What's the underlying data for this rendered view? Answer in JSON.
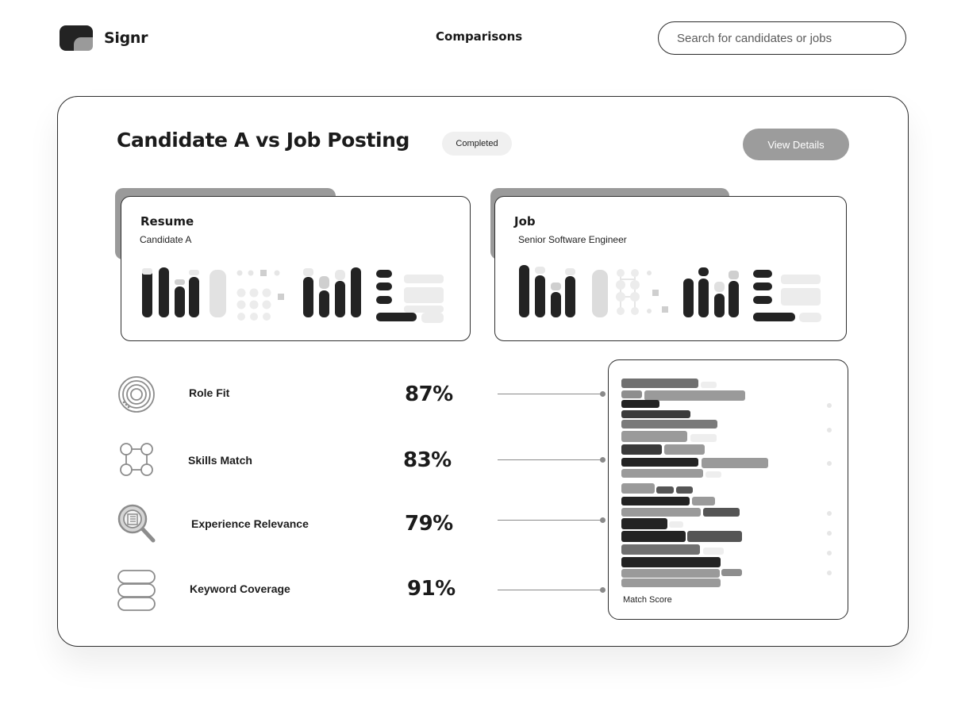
{
  "app": {
    "name": "Signr"
  },
  "nav": {
    "title": "Comparisons"
  },
  "search": {
    "placeholder": "Search for candidates or jobs"
  },
  "comparison": {
    "title": "Candidate A vs Job Posting",
    "status": "Completed",
    "view_button": "View Details"
  },
  "resume": {
    "title": "Resume",
    "subtitle": "Candidate A"
  },
  "job": {
    "title": "Job",
    "subtitle": "Senior Software Engineer"
  },
  "metrics": [
    {
      "label": "Role Fit",
      "value": "87%",
      "icon": "target-icon"
    },
    {
      "label": "Skills Match",
      "value": "83%",
      "icon": "nodes-icon"
    },
    {
      "label": "Experience Relevance",
      "value": "79%",
      "icon": "magnifier-document-icon"
    },
    {
      "label": "Keyword Coverage",
      "value": "91%",
      "icon": "stack-icon"
    }
  ],
  "match_score": {
    "label": "Match Score"
  },
  "colors": {
    "dark": "#232323",
    "mid": "#8c8c8c",
    "light": "#e6e6e6",
    "accent_button": "#9c9c9c"
  }
}
